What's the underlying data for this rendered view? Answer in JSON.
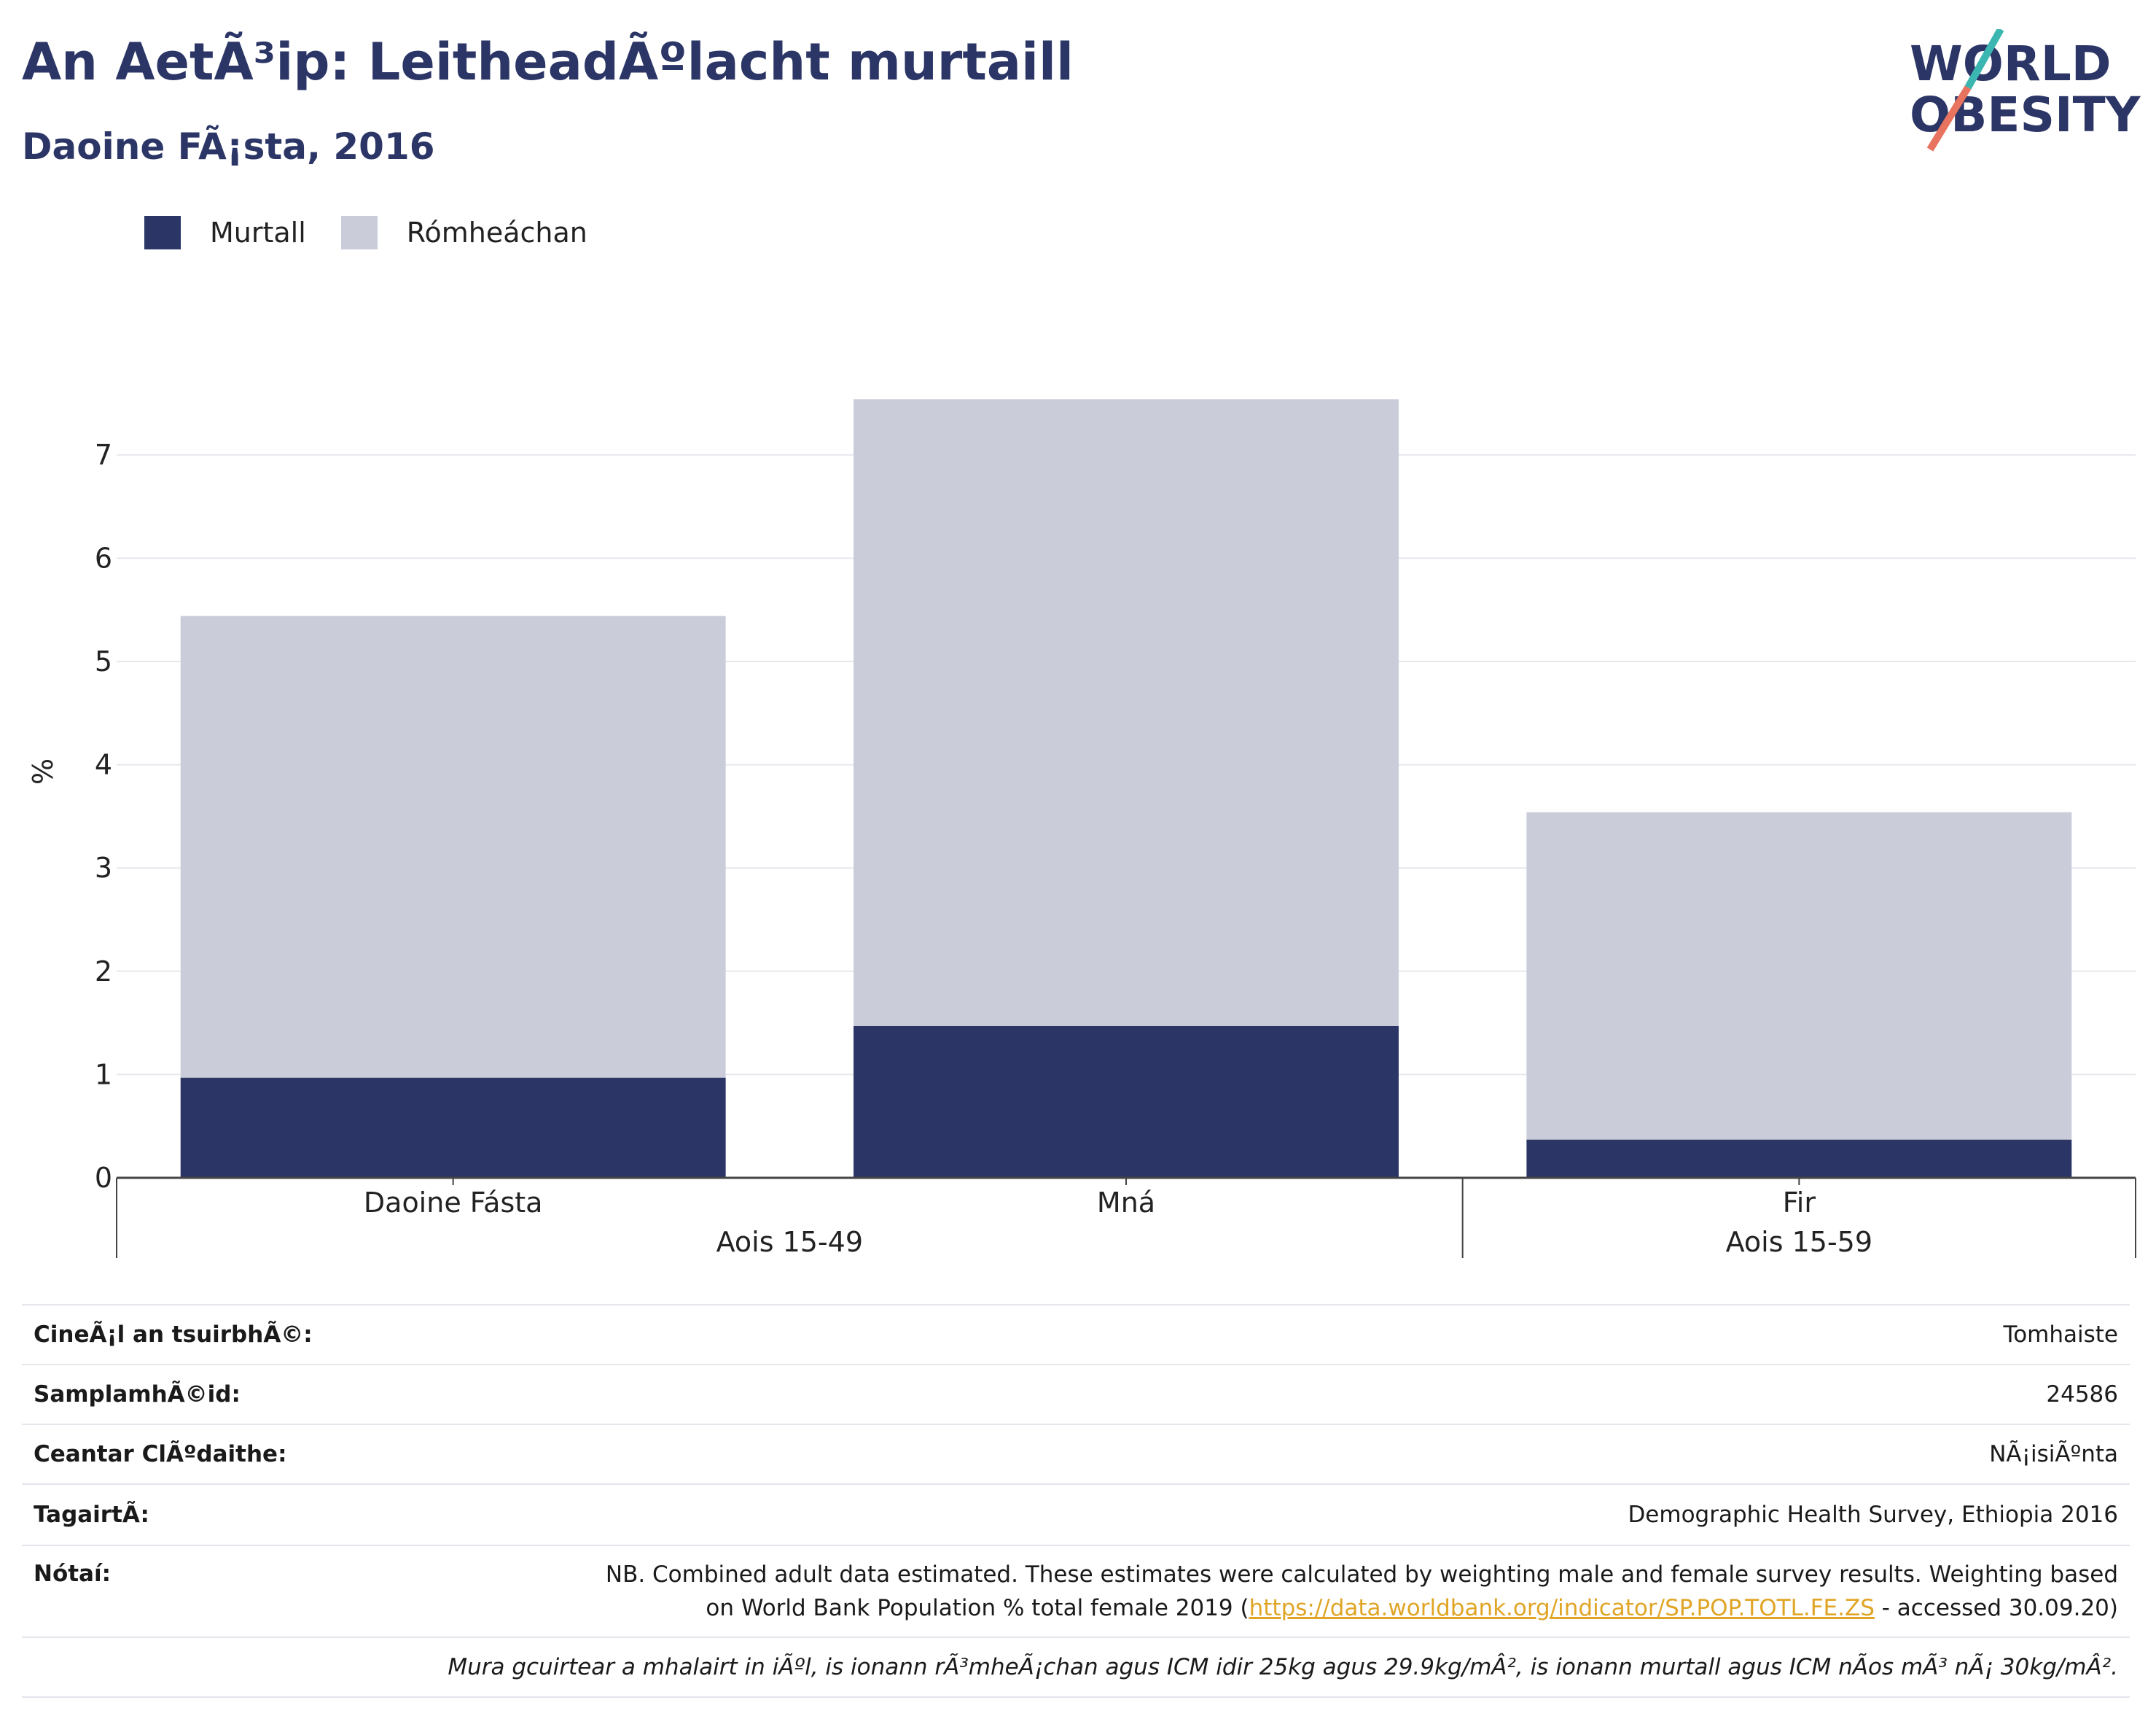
{
  "header": {
    "title": "An AetÃ³ip: LeitheadÃºlacht murtaill",
    "subtitle": "Daoine FÃ¡sta, 2016"
  },
  "logo": {
    "line1": "WORLD",
    "line2": "OBESITY",
    "colors": {
      "text": "#2b3566",
      "slash_top": "#3bb6b0",
      "slash_bottom": "#e8735f"
    }
  },
  "legend": [
    {
      "label": "Murtall",
      "color": "#2b3566"
    },
    {
      "label": "Rómheáchan",
      "color": "#cacdd9"
    }
  ],
  "chart_data": {
    "type": "bar",
    "stacked": true,
    "categories": [
      "Daoine Fásta",
      "Mná",
      "Fir"
    ],
    "groups": [
      {
        "label": "Aois 15-49",
        "categories": [
          "Daoine Fásta",
          "Mná"
        ]
      },
      {
        "label": "Aois 15-59",
        "categories": [
          "Fir"
        ]
      }
    ],
    "series": [
      {
        "name": "Murtall",
        "color": "#2b3566",
        "values": [
          0.97,
          1.47,
          0.37
        ]
      },
      {
        "name": "Rómheáchan",
        "color": "#cacdd9",
        "values": [
          4.47,
          6.07,
          3.17
        ]
      }
    ],
    "ylabel": "%",
    "ylim": [
      0,
      7.6
    ],
    "yticks": [
      0,
      1,
      2,
      3,
      4,
      5,
      6,
      7
    ],
    "grid": true,
    "legend_position": "top-left"
  },
  "details": {
    "survey_type": {
      "label": "CineÃ¡l an tsuirbhÃ©:",
      "value": "Tomhaiste"
    },
    "sample_size": {
      "label": "SamplamhÃ©id:",
      "value": "24586"
    },
    "area": {
      "label": "Ceantar ClÃºdaithe:",
      "value": "NÃ¡isiÃºnta"
    },
    "reference": {
      "label": "TagairtÃ:",
      "value": "Demographic Health Survey, Ethiopia 2016"
    },
    "notes": {
      "label": "Nótaí:",
      "line1": "NB. Combined adult data estimated. These estimates were calculated by weighting male and female survey results. Weighting based",
      "line2_prefix": "on World Bank Population % total female 2019 (",
      "link": "https://data.worldbank.org/indicator/SP.POP.TOTL.FE.ZS",
      "line2_suffix": " - accessed 30.09.20)"
    },
    "footnote": "Mura gcuirtear a mhalairt in iÃºl, is ionann rÃ³mheÃ¡chan agus ICM idir 25kg agus 29.9kg/mÂ², is ionann murtall agus ICM nÃos mÃ³ nÃ¡ 30kg/mÂ²."
  }
}
